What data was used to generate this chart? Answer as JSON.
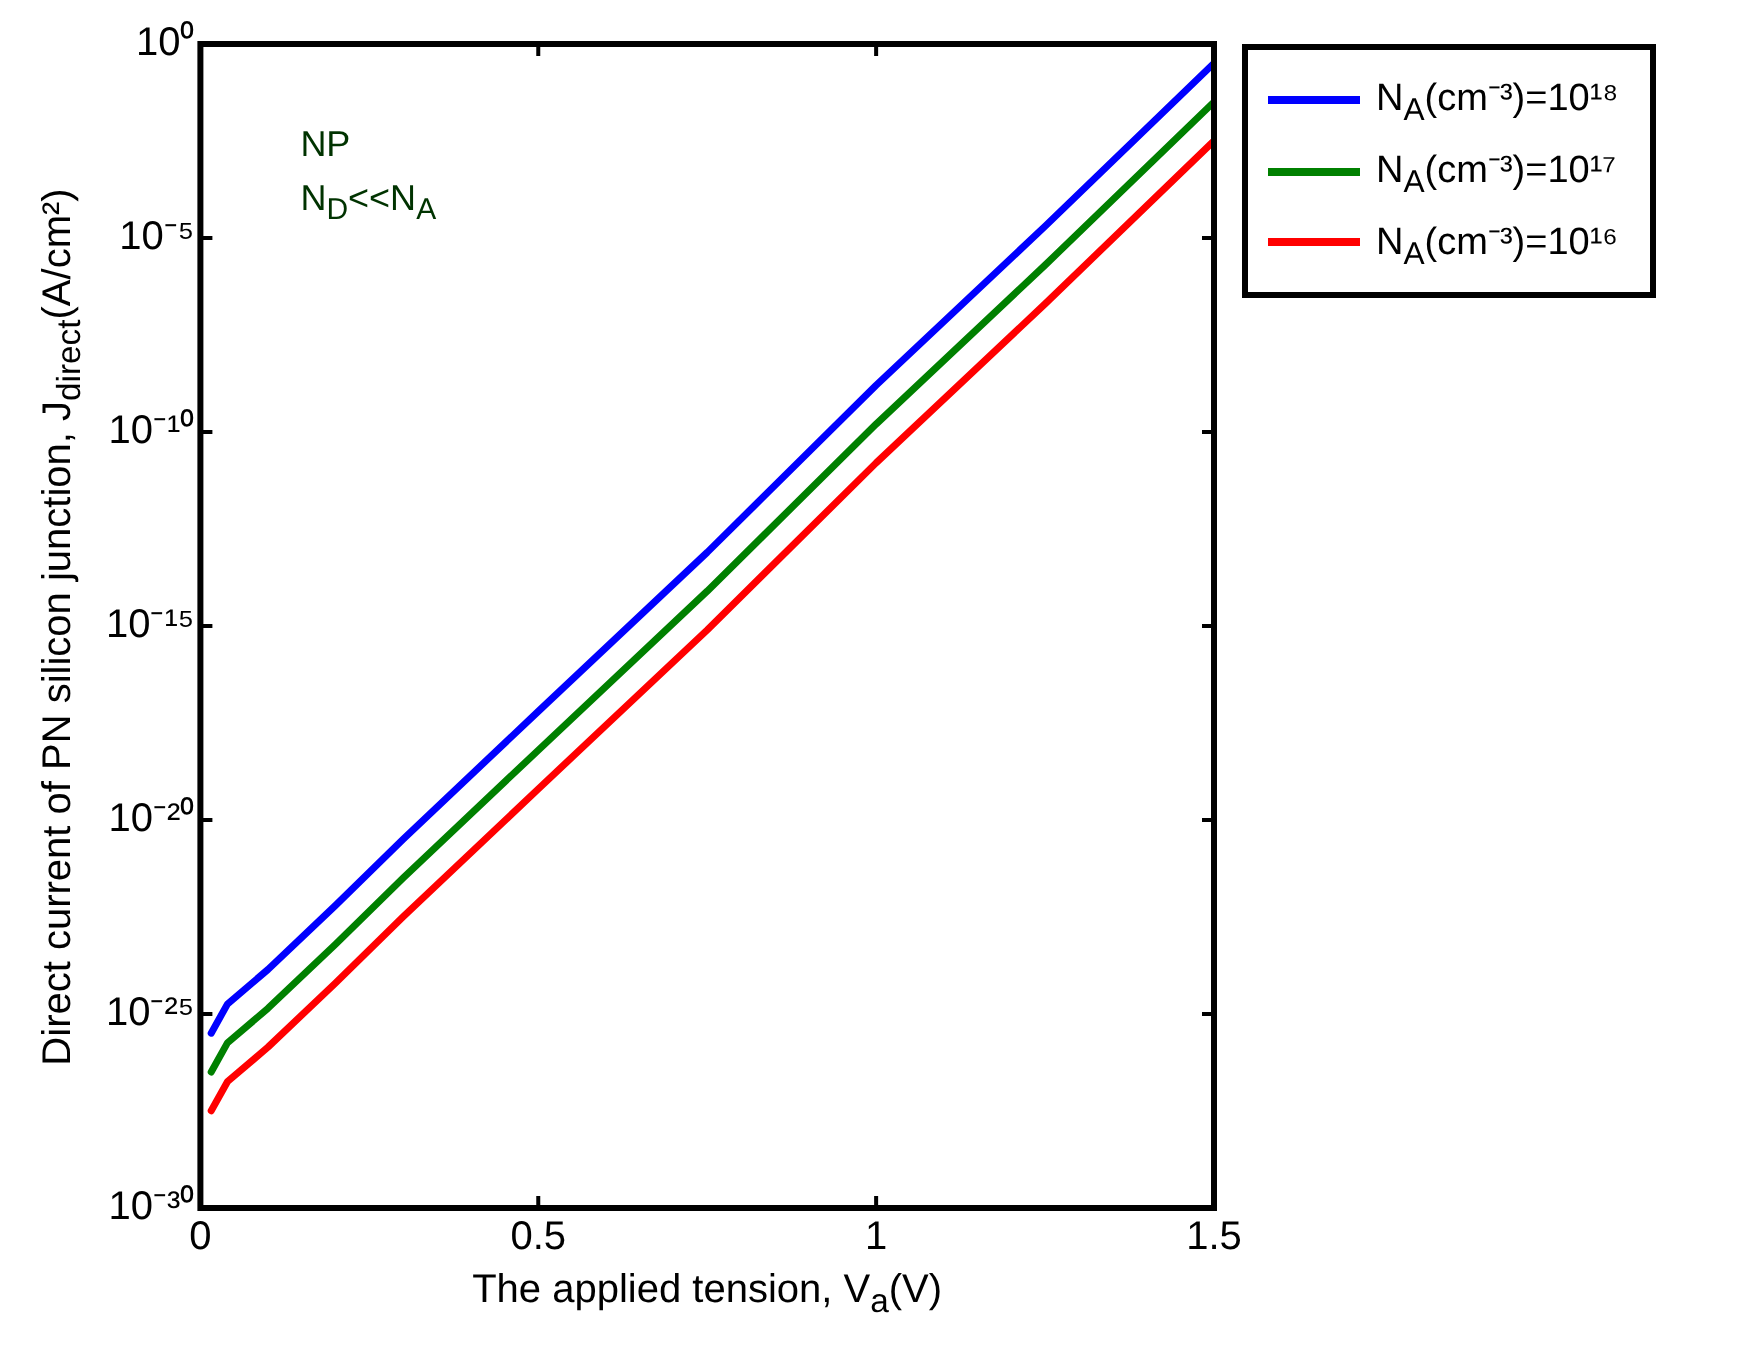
{
  "chart_data": {
    "type": "line",
    "xlabel": "The applied tension, V$_{a}$(V)",
    "ylabel": "Direct current of PN silicon junction, J$_{direct}$(A/cm²)",
    "annotations": [
      "NP",
      "N$_{D}$<<N$_{A}$"
    ],
    "x": [
      0.016,
      0.04,
      0.1,
      0.2,
      0.3,
      0.5,
      0.75,
      1.0,
      1.25,
      1.5
    ],
    "series": [
      {
        "name": "N$_{A}$(cm⁻³)=10¹⁸",
        "color": "#0000ff",
        "values": [
          3.2e-26,
          1.8e-25,
          1.4e-24,
          6.3e-23,
          3.2e-21,
          6.3e-18,
          7.9e-14,
          1.6e-09,
          2e-05,
          0.32
        ]
      },
      {
        "name": "N$_{A}$(cm⁻³)=10¹⁷",
        "color": "#008000",
        "values": [
          3.2e-27,
          1.8e-26,
          1.4e-25,
          6.3e-24,
          3.2e-22,
          6.3e-19,
          7.9e-15,
          1.6e-10,
          2e-06,
          0.032
        ]
      },
      {
        "name": "N$_{A}$(cm⁻³)=10¹⁶",
        "color": "#ff0000",
        "values": [
          3.2e-28,
          1.8e-27,
          1.4e-26,
          6.3e-25,
          3.2e-23,
          6.3e-20,
          7.9e-16,
          1.6e-11,
          2e-07,
          0.0032
        ]
      }
    ],
    "xlim": [
      0,
      1.5
    ],
    "xticks": [
      0,
      0.5,
      1,
      1.5
    ],
    "ylim": [
      1e-30,
      1
    ],
    "yticks": [
      {
        "value": 1,
        "label": "10⁰"
      },
      {
        "value": 1e-05,
        "label": "10⁻⁵"
      },
      {
        "value": 1e-10,
        "label": "10⁻¹⁰"
      },
      {
        "value": 1e-15,
        "label": "10⁻¹⁵"
      },
      {
        "value": 1e-20,
        "label": "10⁻²⁰"
      },
      {
        "value": 1e-25,
        "label": "10⁻²⁵"
      },
      {
        "value": 1e-30,
        "label": "10⁻³⁰"
      }
    ],
    "log": "y",
    "grid": false,
    "legend": "right",
    "marker": "none",
    "line_style": "solid"
  }
}
